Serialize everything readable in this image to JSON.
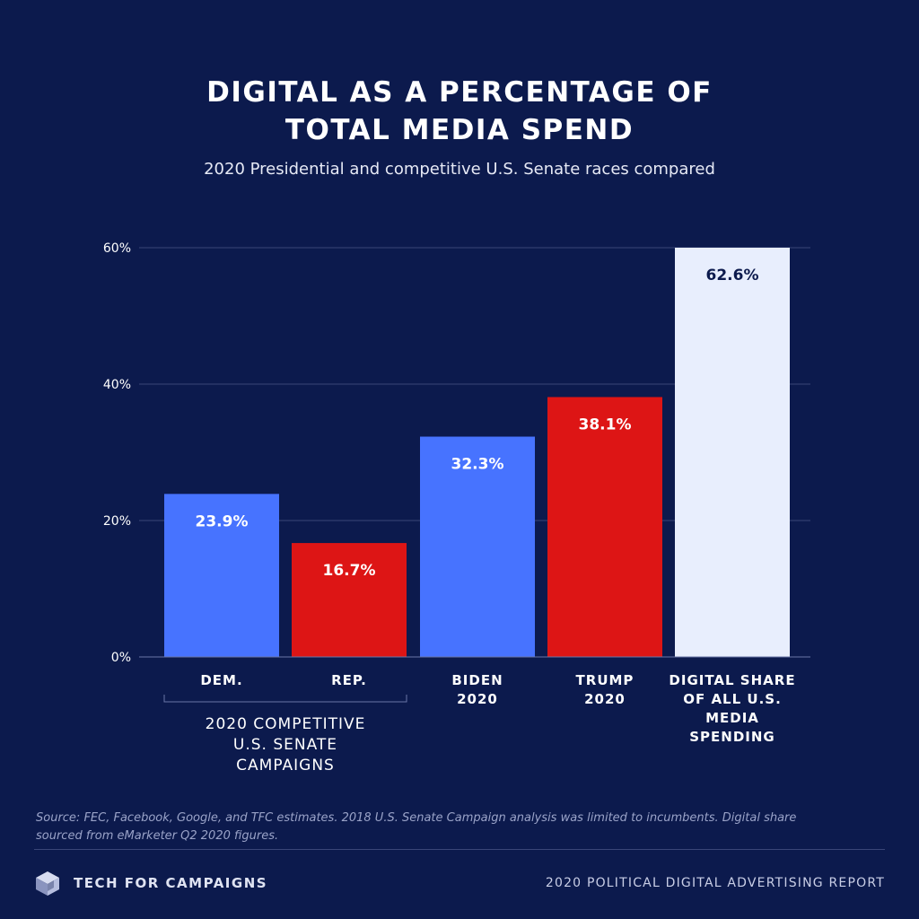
{
  "title_lines": [
    "DIGITAL AS A PERCENTAGE OF",
    "TOTAL MEDIA SPEND"
  ],
  "subtitle": "2020 Presidential and competitive U.S. Senate races compared",
  "chart_data": {
    "type": "bar",
    "title": "DIGITAL AS A PERCENTAGE OF TOTAL MEDIA SPEND",
    "subtitle": "2020 Presidential and competitive U.S. Senate races compared",
    "ylim": [
      0,
      60
    ],
    "yticks": [
      {
        "value": 0,
        "label": "0%"
      },
      {
        "value": 20,
        "label": "20%"
      },
      {
        "value": 40,
        "label": "40%"
      },
      {
        "value": 60,
        "label": "60%"
      }
    ],
    "grid": true,
    "bars": [
      {
        "name": "bar-dem",
        "category_lines": [
          "DEM."
        ],
        "value": 23.9,
        "label": "23.9%",
        "color": "#4773ff",
        "label_color": "#ffffff"
      },
      {
        "name": "bar-rep",
        "category_lines": [
          "REP."
        ],
        "value": 16.7,
        "label": "16.7%",
        "color": "#dd1515",
        "label_color": "#ffffff"
      },
      {
        "name": "bar-biden",
        "category_lines": [
          "BIDEN",
          "2020"
        ],
        "value": 32.3,
        "label": "32.3%",
        "color": "#4773ff",
        "label_color": "#ffffff"
      },
      {
        "name": "bar-trump",
        "category_lines": [
          "TRUMP",
          "2020"
        ],
        "value": 38.1,
        "label": "38.1%",
        "color": "#dd1515",
        "label_color": "#ffffff"
      },
      {
        "name": "bar-digital-share",
        "category_lines": [
          "DIGITAL SHARE",
          "OF ALL U.S.",
          "MEDIA",
          "SPENDING"
        ],
        "value": 62.6,
        "label": "62.6%",
        "color": "#e8eefd",
        "label_color": "#0c1a4d"
      }
    ],
    "group_label_lines": [
      "2020 COMPETITIVE",
      "U.S. SENATE",
      "CAMPAIGNS"
    ]
  },
  "source_note": "Source: FEC, Facebook, Google, and TFC estimates. 2018 U.S. Senate Campaign analysis was limited to incumbents. Digital share sourced from eMarketer Q2 2020 figures.",
  "footer": {
    "brand": "TECH FOR CAMPAIGNS",
    "report": "2020 POLITICAL DIGITAL ADVERTISING REPORT",
    "logo_icon": "cube-icon"
  },
  "colors": {
    "background": "#0c1a4d",
    "democrat": "#4773ff",
    "republican": "#dd1515",
    "neutral": "#e8eefd",
    "grid": "#3a4677"
  }
}
